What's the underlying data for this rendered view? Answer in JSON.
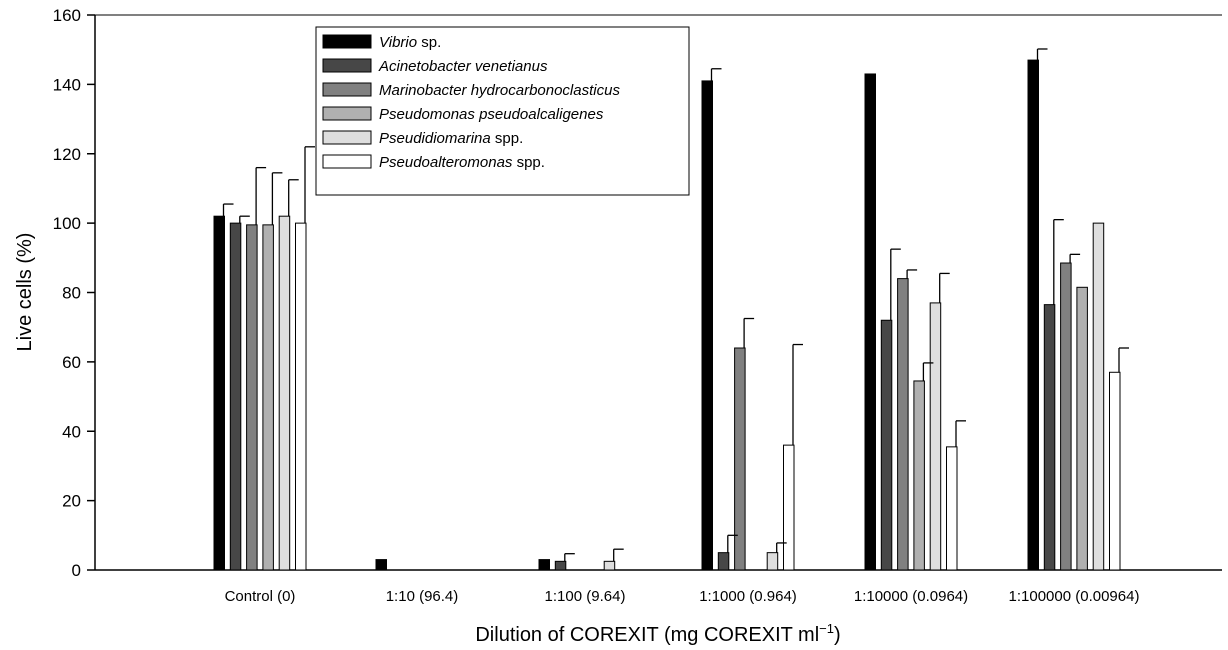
{
  "chart_data": {
    "type": "bar",
    "xlabel": "Dilution of COREXIT (mg COREXIT ml",
    "xlabel_sup": "−1",
    "xlabel_end": ")",
    "ylabel": "Live cells (%)",
    "ylim": [
      0,
      160
    ],
    "yticks": [
      0,
      20,
      40,
      60,
      80,
      100,
      120,
      140,
      160
    ],
    "categories": [
      "Control (0)",
      "1:10 (96.4)",
      "1:100 (9.64)",
      "1:1000 (0.964)",
      "1:10000 (0.0964)",
      "1:100000 (0.00964)"
    ],
    "legend_position": "top-left",
    "series": [
      {
        "name_italic": "Vibrio",
        "name_rest": " sp.",
        "color": "#000000",
        "values": [
          102,
          3,
          3,
          141,
          143,
          147
        ],
        "errors": [
          3.5,
          null,
          null,
          3.5,
          null,
          3.2
        ]
      },
      {
        "name_italic": "Acinetobacter venetianus",
        "name_rest": "",
        "color": "#474747",
        "values": [
          100,
          0,
          2.5,
          5,
          72,
          76.5
        ],
        "errors": [
          2,
          null,
          2.2,
          5,
          20.5,
          24.5
        ]
      },
      {
        "name_italic": "Marinobacter hydrocarbonoclasticus",
        "name_rest": "",
        "color": "#808080",
        "values": [
          99.5,
          0,
          0,
          64,
          84,
          88.5
        ],
        "errors": [
          16.5,
          null,
          null,
          8.5,
          2.5,
          2.5
        ]
      },
      {
        "name_italic": "Pseudomonas pseudoalcaligenes",
        "name_rest": "",
        "color": "#b0b0b0",
        "values": [
          99.5,
          0,
          0,
          0,
          54.5,
          81.5
        ],
        "errors": [
          15,
          null,
          null,
          null,
          5.2,
          null
        ]
      },
      {
        "name_italic": "Pseudidiomarina",
        "name_rest": " spp.",
        "color": "#dedede",
        "values": [
          102,
          0,
          2.5,
          5,
          77,
          100
        ],
        "errors": [
          10.5,
          null,
          3.5,
          2.8,
          8.5,
          null
        ]
      },
      {
        "name_italic": "Pseudoalteromonas",
        "name_rest": " spp.",
        "color": "#ffffff",
        "values": [
          100,
          0,
          0,
          36,
          35.5,
          57
        ],
        "errors": [
          22,
          null,
          null,
          29,
          7.5,
          7
        ]
      }
    ]
  }
}
